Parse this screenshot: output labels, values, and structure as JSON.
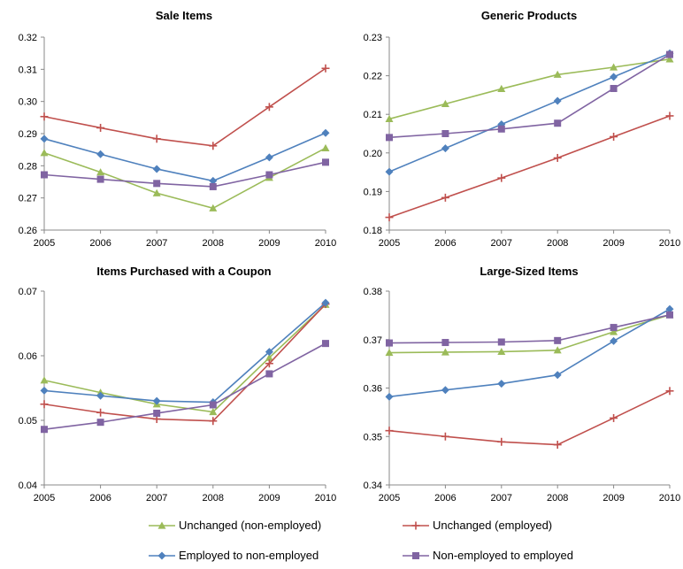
{
  "chart_data": [
    {
      "type": "line",
      "title": "Sale Items",
      "xlabel": "",
      "ylabel": "",
      "x": [
        "2005",
        "2006",
        "2007",
        "2008",
        "2009",
        "2010"
      ],
      "ylim": [
        0.26,
        0.32
      ],
      "yticks": [
        "0.26",
        "0.27",
        "0.28",
        "0.29",
        "0.30",
        "0.31",
        "0.32"
      ],
      "grid": false,
      "series": [
        {
          "key": "unchanged_non_employed",
          "values": [
            0.284,
            0.278,
            0.2715,
            0.2668,
            0.2763,
            0.2855
          ]
        },
        {
          "key": "unchanged_employed",
          "values": [
            0.2953,
            0.2918,
            0.2884,
            0.2862,
            0.2983,
            0.3103
          ]
        },
        {
          "key": "employed_to_non_employed",
          "values": [
            0.2884,
            0.2836,
            0.279,
            0.2753,
            0.2826,
            0.2902
          ]
        },
        {
          "key": "non_employed_to_employed",
          "values": [
            0.2772,
            0.2758,
            0.2745,
            0.2735,
            0.2772,
            0.2811
          ]
        }
      ]
    },
    {
      "type": "line",
      "title": "Generic Products",
      "xlabel": "",
      "ylabel": "",
      "x": [
        "2005",
        "2006",
        "2007",
        "2008",
        "2009",
        "2010"
      ],
      "ylim": [
        0.18,
        0.23
      ],
      "yticks": [
        "0.18",
        "0.19",
        "0.20",
        "0.21",
        "0.22",
        "0.23"
      ],
      "grid": false,
      "series": [
        {
          "key": "unchanged_non_employed",
          "values": [
            0.2088,
            0.2127,
            0.2166,
            0.2203,
            0.2222,
            0.2243
          ]
        },
        {
          "key": "unchanged_employed",
          "values": [
            0.1833,
            0.1884,
            0.1935,
            0.1987,
            0.2042,
            0.2096
          ]
        },
        {
          "key": "employed_to_non_employed",
          "values": [
            0.1951,
            0.2012,
            0.2074,
            0.2135,
            0.2197,
            0.2258
          ]
        },
        {
          "key": "non_employed_to_employed",
          "values": [
            0.204,
            0.205,
            0.2062,
            0.2077,
            0.2167,
            0.2255
          ]
        }
      ]
    },
    {
      "type": "line",
      "title": "Items Purchased with a Coupon",
      "xlabel": "",
      "ylabel": "",
      "x": [
        "2005",
        "2006",
        "2007",
        "2008",
        "2009",
        "2010"
      ],
      "ylim": [
        0.04,
        0.07
      ],
      "yticks": [
        "0.04",
        "0.05",
        "0.06",
        "0.07"
      ],
      "grid": false,
      "series": [
        {
          "key": "unchanged_non_employed",
          "values": [
            0.0562,
            0.0543,
            0.0525,
            0.0513,
            0.0597,
            0.0679
          ]
        },
        {
          "key": "unchanged_employed",
          "values": [
            0.0525,
            0.0512,
            0.0502,
            0.0499,
            0.0588,
            0.068
          ]
        },
        {
          "key": "employed_to_non_employed",
          "values": [
            0.0546,
            0.0538,
            0.053,
            0.0528,
            0.0606,
            0.0682
          ]
        },
        {
          "key": "non_employed_to_employed",
          "values": [
            0.0486,
            0.0497,
            0.0511,
            0.0524,
            0.0572,
            0.0619
          ]
        }
      ]
    },
    {
      "type": "line",
      "title": "Large-Sized Items",
      "xlabel": "",
      "ylabel": "",
      "x": [
        "2005",
        "2006",
        "2007",
        "2008",
        "2009",
        "2010"
      ],
      "ylim": [
        0.34,
        0.38
      ],
      "yticks": [
        "0.34",
        "0.35",
        "0.36",
        "0.37",
        "0.38"
      ],
      "grid": false,
      "series": [
        {
          "key": "unchanged_non_employed",
          "values": [
            0.3673,
            0.3674,
            0.3675,
            0.3678,
            0.3716,
            0.3751
          ]
        },
        {
          "key": "unchanged_employed",
          "values": [
            0.3512,
            0.35,
            0.3489,
            0.3483,
            0.3538,
            0.3594
          ]
        },
        {
          "key": "employed_to_non_employed",
          "values": [
            0.3582,
            0.3596,
            0.3609,
            0.3627,
            0.3697,
            0.3763
          ]
        },
        {
          "key": "non_employed_to_employed",
          "values": [
            0.3693,
            0.3694,
            0.3695,
            0.3698,
            0.3725,
            0.3751
          ]
        }
      ]
    }
  ],
  "legend": {
    "placement": "bottom",
    "items": [
      {
        "key": "unchanged_non_employed",
        "label": "Unchanged (non-employed)",
        "color": "#9BBB59",
        "marker": "triangle-marker"
      },
      {
        "key": "unchanged_employed",
        "label": "Unchanged (employed)",
        "color": "#C0504D",
        "marker": "plus-marker"
      },
      {
        "key": "employed_to_non_employed",
        "label": "Employed to non-employed",
        "color": "#4F81BD",
        "marker": "diamond-marker"
      },
      {
        "key": "non_employed_to_employed",
        "label": "Non-employed to employed",
        "color": "#8064A2",
        "marker": "square-marker"
      }
    ]
  }
}
